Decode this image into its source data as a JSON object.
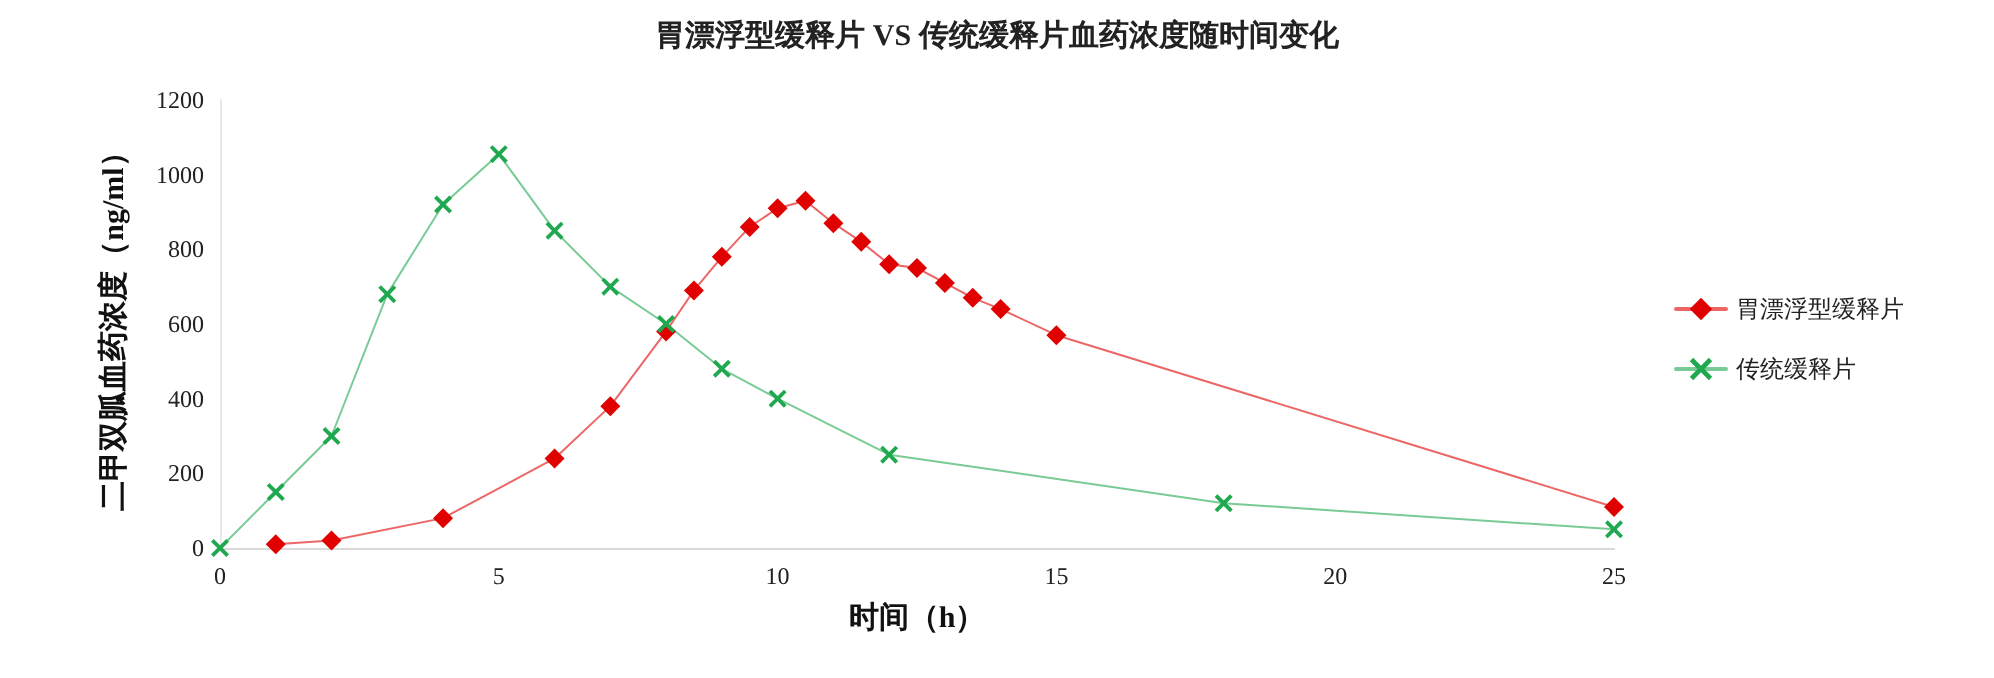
{
  "chart_data": {
    "type": "line",
    "title": "胃漂浮型缓释片 VS 传统缓释片血药浓度随时间变化",
    "xlabel": "时间（h）",
    "ylabel": "二甲双胍血药浓度（ng/ml）",
    "xlim": [
      0,
      25
    ],
    "xticks": [
      0,
      5,
      10,
      15,
      20,
      25
    ],
    "ylim": [
      0,
      1200
    ],
    "yticks": [
      0,
      200,
      400,
      600,
      800,
      1000,
      1200
    ],
    "grid": false,
    "legend": "right",
    "series": [
      {
        "name": "胃漂浮型缓释片",
        "color": "#e00000",
        "marker": "diamond",
        "x": [
          1,
          2,
          4,
          6,
          7,
          8,
          8.5,
          9,
          9.5,
          10,
          10.5,
          11,
          11.5,
          12,
          12.5,
          13,
          13.5,
          14,
          15,
          25
        ],
        "values": [
          10,
          20,
          80,
          240,
          380,
          580,
          690,
          780,
          860,
          910,
          930,
          870,
          820,
          760,
          750,
          710,
          670,
          640,
          570,
          110
        ]
      },
      {
        "name": "传统缓释片",
        "color": "#1fa84f",
        "marker": "cross",
        "x": [
          0,
          1,
          2,
          3,
          4,
          5,
          6,
          7,
          8,
          9,
          10,
          12,
          18,
          25
        ],
        "values": [
          0,
          150,
          300,
          680,
          920,
          1055,
          850,
          700,
          600,
          480,
          400,
          250,
          120,
          50
        ]
      }
    ]
  }
}
